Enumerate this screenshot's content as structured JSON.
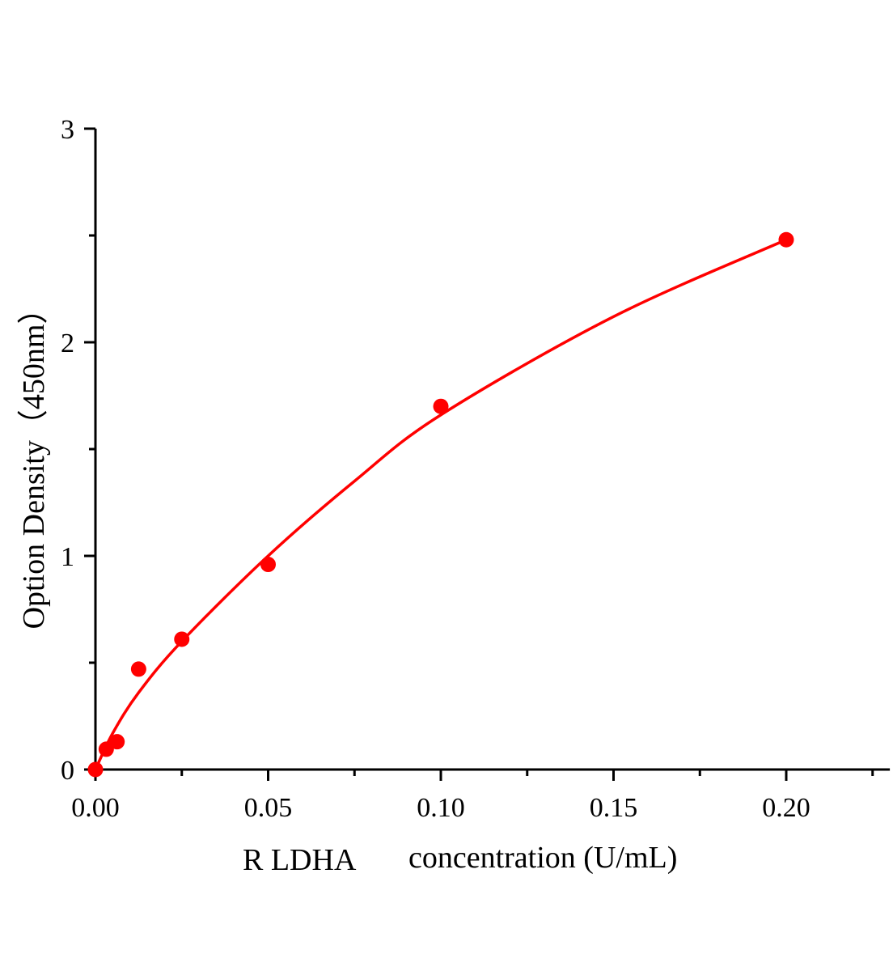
{
  "chart_data": {
    "type": "scatter",
    "xlabel_prefix": "R LDHA",
    "xlabel": "concentration (U/mL)",
    "ylabel": "Option Density（450nm）",
    "xlim": [
      0,
      0.23
    ],
    "ylim": [
      0,
      3
    ],
    "x_ticks": [
      "0.00",
      "0.05",
      "0.10",
      "0.15",
      "0.20"
    ],
    "x_tick_values": [
      0,
      0.05,
      0.1,
      0.15,
      0.2
    ],
    "y_ticks": [
      "0",
      "1",
      "2",
      "3"
    ],
    "y_tick_values": [
      0,
      1,
      2,
      3
    ],
    "grid": false,
    "points": {
      "x": [
        0,
        0.003125,
        0.00625,
        0.0125,
        0.025,
        0.05,
        0.1,
        0.2
      ],
      "y": [
        0.0,
        0.095,
        0.13,
        0.47,
        0.61,
        0.96,
        1.7,
        2.48
      ]
    },
    "fit_curve": {
      "x": [
        0,
        0.005,
        0.0125,
        0.025,
        0.05,
        0.075,
        0.1,
        0.15,
        0.2
      ],
      "y": [
        0,
        0.17,
        0.36,
        0.6,
        1.0,
        1.35,
        1.66,
        2.12,
        2.48
      ]
    },
    "colors": {
      "series": "#ff0000",
      "axis": "#000000"
    }
  }
}
